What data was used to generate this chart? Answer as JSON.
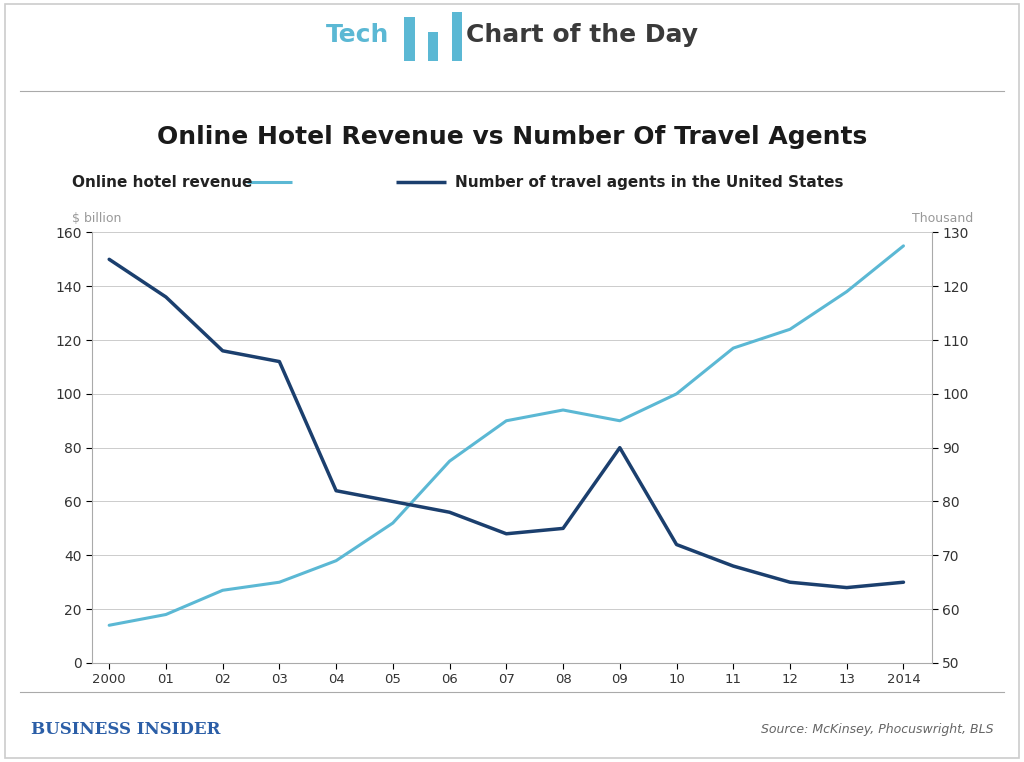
{
  "years": [
    2000,
    2001,
    2002,
    2003,
    2004,
    2005,
    2006,
    2007,
    2008,
    2009,
    2010,
    2011,
    2012,
    2013,
    2014
  ],
  "online_hotel_revenue": [
    14,
    18,
    27,
    30,
    38,
    52,
    75,
    90,
    94,
    90,
    100,
    117,
    124,
    138,
    155
  ],
  "travel_agents": [
    125,
    118,
    108,
    106,
    82,
    80,
    78,
    74,
    75,
    90,
    72,
    68,
    65,
    64,
    65
  ],
  "left_ylim": [
    0,
    160
  ],
  "left_yticks": [
    0,
    20,
    40,
    60,
    80,
    100,
    120,
    140,
    160
  ],
  "right_ylim": [
    50,
    130
  ],
  "right_yticks": [
    50,
    60,
    70,
    80,
    90,
    100,
    110,
    120,
    130
  ],
  "left_ylabel": "$ billion",
  "right_ylabel": "Thousand",
  "left_label": "Online hotel revenue",
  "right_label": "Number of travel agents in the United States",
  "light_blue_color": "#5BB8D4",
  "dark_blue_color": "#1B3F6E",
  "title": "Online Hotel Revenue vs Number Of Travel Agents",
  "source_text": "Source: McKinsey, Phocuswright, BLS",
  "footer_text": "BUSINESS INSIDER",
  "background_color": "#FFFFFF",
  "grid_color": "#CCCCCC",
  "header_tech_color": "#5BB8D4",
  "header_day_color": "#3A3A3A",
  "title_color": "#1a1a1a",
  "border_color": "#CCCCCC",
  "bi_color": "#2B5EA7",
  "source_color": "#666666"
}
